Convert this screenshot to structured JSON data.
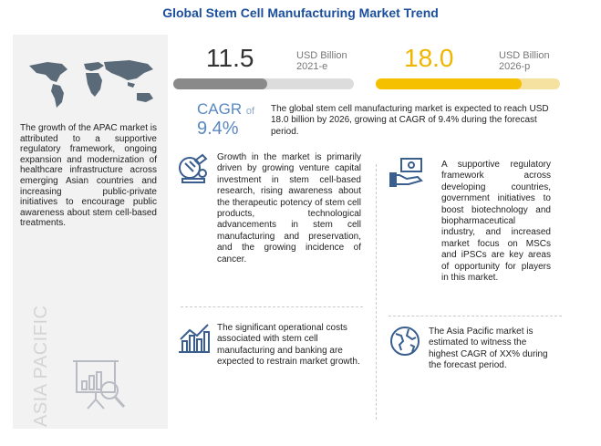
{
  "title": "Global Stem Cell Manufacturing Market Trend",
  "market": {
    "value_2021": "11.5",
    "unit_2021": "USD Billion",
    "year_2021": "2021-e",
    "value_2026": "18.0",
    "unit_2026": "USD Billion",
    "year_2026": "2026-p",
    "bar_fill_2021": 0.52,
    "bar_fill_2026": 0.79,
    "bar_color_2021": "#8a8a8a",
    "bar_color_2026": "#f5c000"
  },
  "cagr": {
    "label": "CAGR",
    "of": "of",
    "value": "9.4%",
    "text": "The global stem cell manufacturing market is expected to reach USD 18.0 billion by 2026, growing at CAGR of 9.4% during the forecast period."
  },
  "apac": {
    "text": "The growth of the APAC market is attributed to a supportive regulatory framework, ongoing expansion and modernization of healthcare infrastructure across emerging Asian countries and increasing public-private initiatives to encourage public awareness about stem cell-based treatments.",
    "vertical_label": "ASIA PACIFIC"
  },
  "drivers": {
    "text": "Growth in the market is primarily driven by growing venture capital investment in stem cell-based research, rising awareness about the therapeutic potency of stem cell products, technological advancements in stem cell manufacturing and preservation, and the growing incidence of cancer."
  },
  "opportunities": {
    "text": "A supportive regulatory framework across developing countries, government initiatives to boost biotechnology and biopharmaceutical industry, and increased market focus on MSCs and iPSCs are key areas of opportunity for players in this market."
  },
  "restraints": {
    "text": "The significant operational costs associated with stem cell manufacturing and banking are expected to restrain market growth."
  },
  "regional": {
    "text": "The Asia Pacific market is estimated to witness the highest CAGR of XX% during the forecast period."
  },
  "colors": {
    "title": "#1b4f9c",
    "accent_blue": "#5a88c0",
    "accent_yellow": "#f0b500",
    "icon_blue": "#3a5f8f"
  },
  "icons": [
    "world-map-icon",
    "microscope-icon",
    "money-hand-icon",
    "bar-chart-icon",
    "globe-icon",
    "presentation-search-icon"
  ]
}
